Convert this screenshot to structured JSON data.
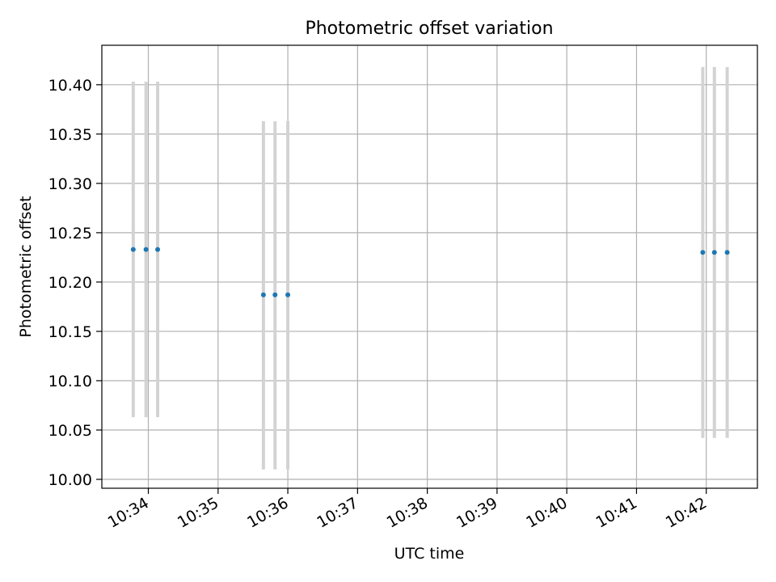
{
  "chart_data": {
    "type": "scatter",
    "title": "Photometric offset variation",
    "xlabel": "UTC time",
    "ylabel": "Photometric offset",
    "grid": true,
    "x_ticks": [
      "10:34",
      "10:35",
      "10:36",
      "10:37",
      "10:38",
      "10:39",
      "10:40",
      "10:41",
      "10:42"
    ],
    "y_ticks": [
      "10.00",
      "10.05",
      "10.10",
      "10.15",
      "10.20",
      "10.25",
      "10.30",
      "10.35",
      "10.40"
    ],
    "xlim": [
      "10:33:20",
      "10:42:44"
    ],
    "ylim": [
      9.991,
      10.44
    ],
    "points": [
      {
        "x": "10:33:47",
        "y": 10.233,
        "err_low": 10.063,
        "err_high": 10.403
      },
      {
        "x": "10:33:58",
        "y": 10.233,
        "err_low": 10.063,
        "err_high": 10.403
      },
      {
        "x": "10:34:08",
        "y": 10.233,
        "err_low": 10.063,
        "err_high": 10.403
      },
      {
        "x": "10:35:39",
        "y": 10.187,
        "err_low": 10.01,
        "err_high": 10.363
      },
      {
        "x": "10:35:49",
        "y": 10.187,
        "err_low": 10.01,
        "err_high": 10.363
      },
      {
        "x": "10:36:00",
        "y": 10.187,
        "err_low": 10.01,
        "err_high": 10.363
      },
      {
        "x": "10:41:57",
        "y": 10.23,
        "err_low": 10.042,
        "err_high": 10.418
      },
      {
        "x": "10:42:07",
        "y": 10.23,
        "err_low": 10.042,
        "err_high": 10.418
      },
      {
        "x": "10:42:18",
        "y": 10.23,
        "err_low": 10.042,
        "err_high": 10.418
      }
    ],
    "colors": {
      "marker": "#1f77b4",
      "errorbar": "#d3d3d3",
      "grid": "#b0b0b0"
    }
  }
}
